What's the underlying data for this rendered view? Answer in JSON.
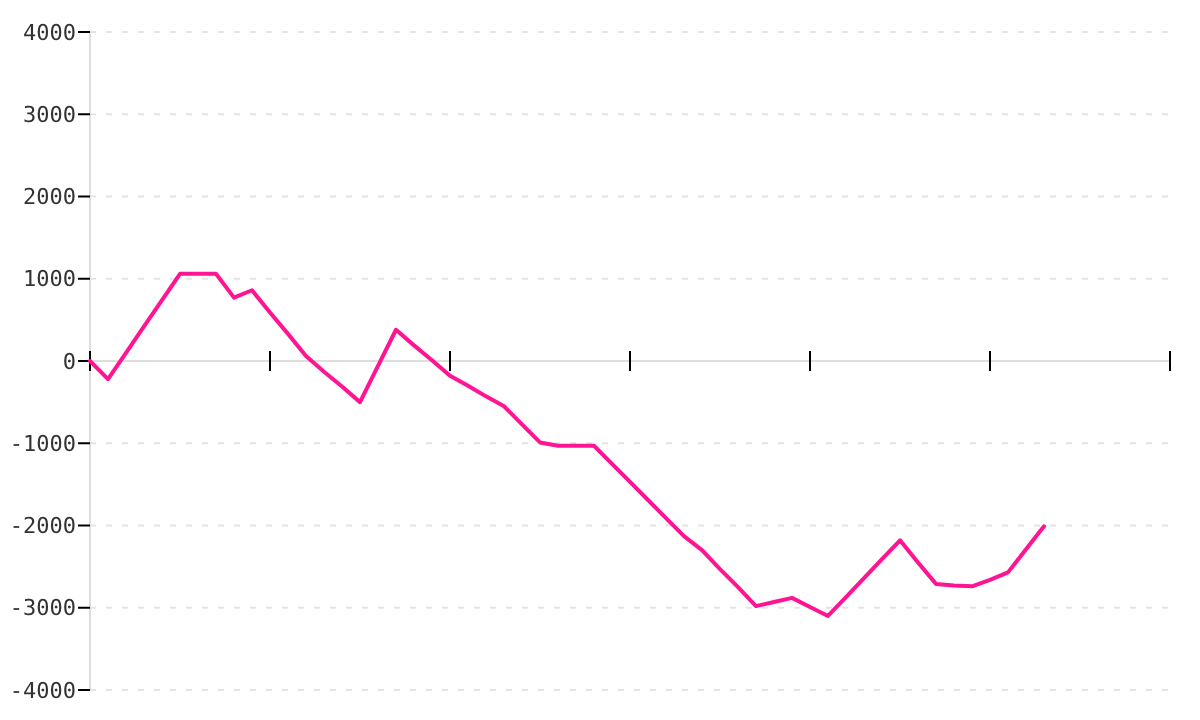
{
  "chart_data": {
    "type": "line",
    "tick_labels": "y",
    "grid": "y",
    "marker": "none",
    "line_style": "solid",
    "categories": [
      null,
      null,
      null,
      null,
      null,
      null,
      null,
      null,
      null,
      null,
      null,
      null,
      null,
      null,
      null,
      null,
      null,
      null,
      null,
      null,
      null,
      null,
      null,
      null,
      null,
      null,
      null,
      null,
      null,
      null,
      null,
      null,
      null,
      null,
      null,
      null,
      null,
      null,
      null,
      null,
      null,
      null,
      null,
      null,
      null,
      null,
      null,
      null,
      null,
      null,
      null,
      null,
      null,
      null,
      null,
      null,
      null,
      null,
      null,
      null,
      null
    ],
    "ylim": [
      -4000,
      4000
    ],
    "yticks": [
      -4000,
      -3000,
      -2000,
      -1000,
      0,
      1000,
      2000,
      3000,
      4000
    ],
    "series": [
      {
        "color": "#ff1493",
        "values": [
          0,
          -220,
          100,
          420,
          740,
          1060,
          1060,
          1060,
          770,
          860,
          590,
          330,
          60,
          -130,
          -310,
          -500,
          -60,
          380,
          190,
          10,
          -180,
          -300,
          -430,
          -550,
          -770,
          -990,
          -1030,
          -1030,
          -1030,
          -1250,
          -1470,
          -1690,
          -1910,
          -2130,
          -2300,
          -2530,
          -2750,
          -2980,
          -2930,
          -2880,
          -2990,
          -3100,
          -2870,
          -2640,
          -2410,
          -2180,
          -2450,
          -2710,
          -2730,
          -2740,
          -2660,
          -2570,
          -2290,
          -2010,
          null,
          null,
          null,
          null,
          null,
          null,
          null
        ]
      }
    ]
  }
}
